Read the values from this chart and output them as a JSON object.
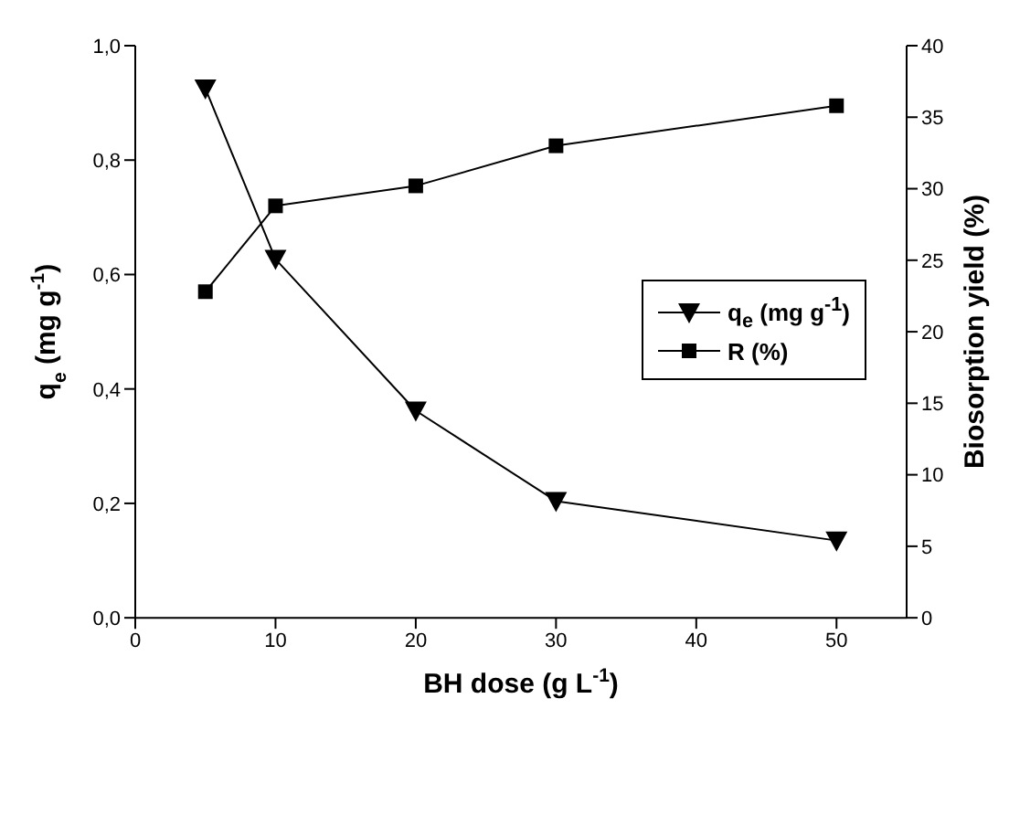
{
  "chart_data": {
    "type": "line",
    "xlabel": "BH dose (g L$^{-1}$)",
    "ylabel": "q$_{e}$ (mg g$^{-1}$)",
    "y2label": "Biosorption yield (%)",
    "x": [
      5,
      10,
      20,
      30,
      50
    ],
    "series": [
      {
        "name": "q$_{e}$ (mg g$^{-1}$)",
        "color": "#000000",
        "values": [
          0.925,
          0.627,
          0.362,
          0.204,
          0.135
        ],
        "marker": "triangle"
      },
      {
        "name": "R (%)",
        "color": "#000000",
        "values": [
          22.8,
          28.8,
          30.2,
          33.0,
          35.8
        ],
        "marker": "square",
        "axis": "y2"
      }
    ],
    "xlim": [
      0,
      55
    ],
    "xticks": [
      0,
      10,
      20,
      30,
      40,
      50
    ],
    "ylim": [
      0,
      1
    ],
    "yticks": [
      {
        "value": 0,
        "label": "0,0"
      },
      {
        "value": 0.2,
        "label": "0,2"
      },
      {
        "value": 0.4,
        "label": "0,4"
      },
      {
        "value": 0.6,
        "label": "0,6"
      },
      {
        "value": 0.8,
        "label": "0,8"
      },
      {
        "value": 1,
        "label": "1,0"
      }
    ],
    "y2lim": [
      0,
      40
    ],
    "y2ticks": [
      0,
      5,
      10,
      15,
      20,
      25,
      30,
      35,
      40
    ],
    "grid": false,
    "legend": "right",
    "line_style": "solid"
  }
}
